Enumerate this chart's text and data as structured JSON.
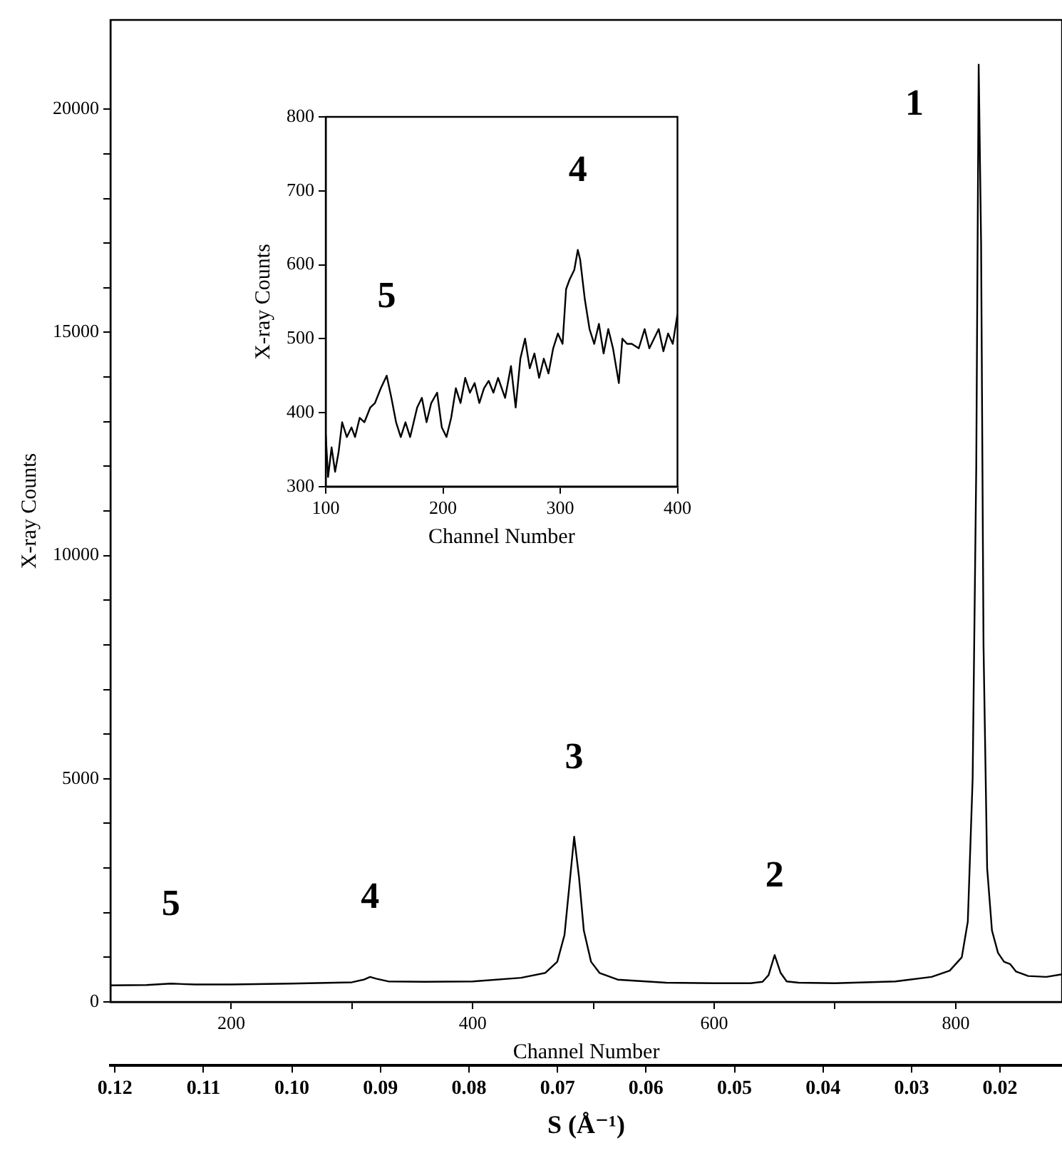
{
  "chart_data": [
    {
      "type": "line",
      "xlabel": "Channel Number",
      "ylabel": "X-ray Counts",
      "x2label": "S (Å⁻¹)",
      "color": "#000000",
      "marker": "none",
      "grid": false,
      "x": [
        100,
        130,
        150,
        170,
        200,
        250,
        300,
        310,
        315,
        320,
        330,
        360,
        400,
        440,
        460,
        470,
        476,
        480,
        484,
        488,
        492,
        498,
        505,
        520,
        560,
        600,
        630,
        640,
        645,
        650,
        655,
        660,
        670,
        700,
        750,
        780,
        795,
        805,
        810,
        814,
        817,
        819,
        821,
        823,
        826,
        830,
        835,
        840,
        845,
        850,
        860,
        875,
        888
      ],
      "values": [
        370,
        380,
        410,
        390,
        390,
        410,
        440,
        500,
        560,
        520,
        460,
        450,
        460,
        540,
        650,
        900,
        1500,
        2600,
        3700,
        2800,
        1600,
        900,
        650,
        500,
        430,
        420,
        420,
        450,
        600,
        1050,
        650,
        460,
        430,
        420,
        460,
        560,
        700,
        1000,
        1800,
        5000,
        12000,
        21000,
        17000,
        8000,
        3000,
        1600,
        1100,
        900,
        850,
        680,
        580,
        560,
        620
      ],
      "xlim": [
        100,
        888
      ],
      "xticks": [
        200,
        {
          "value": 300,
          "label": null
        },
        400,
        {
          "value": 500,
          "label": null
        },
        600,
        {
          "value": 700,
          "label": null
        },
        800
      ],
      "ylim": [
        0,
        22000
      ],
      "yticks": [
        0,
        {
          "value": 1000,
          "label": null
        },
        {
          "value": 2000,
          "label": null
        },
        {
          "value": 3000,
          "label": null
        },
        {
          "value": 4000,
          "label": null
        },
        5000,
        {
          "value": 6000,
          "label": null
        },
        {
          "value": 7000,
          "label": null
        },
        {
          "value": 8000,
          "label": null
        },
        {
          "value": 9000,
          "label": null
        },
        10000,
        {
          "value": 11000,
          "label": null
        },
        {
          "value": 12000,
          "label": null
        },
        {
          "value": 13000,
          "label": null
        },
        {
          "value": 14000,
          "label": null
        },
        15000,
        {
          "value": 16000,
          "label": null
        },
        {
          "value": 17000,
          "label": null
        },
        {
          "value": 18000,
          "label": null
        },
        {
          "value": 19000,
          "label": null
        },
        20000
      ],
      "x2lim": [
        0.1205,
        0.013
      ],
      "x2ticks": [
        0.12,
        0.11,
        {
          "value": 0.1,
          "label": "0.10"
        },
        0.09,
        0.08,
        0.07,
        0.06,
        0.05,
        0.04,
        0.03,
        0.02
      ],
      "annotations": [
        {
          "text": "1",
          "x": 819,
          "y": 21000
        },
        {
          "text": "2",
          "x": 650,
          "y": 1050
        },
        {
          "text": "3",
          "x": 484,
          "y": 3700
        },
        {
          "text": "4",
          "x": 315,
          "y": 560
        },
        {
          "text": "5",
          "x": 150,
          "y": 410
        }
      ]
    },
    {
      "type": "line",
      "xlabel": "Channel Number",
      "ylabel": "X-ray Counts",
      "color": "#000000",
      "marker": "none",
      "grid": false,
      "x": [
        100,
        102,
        105,
        108,
        111,
        114,
        118,
        122,
        125,
        129,
        133,
        138,
        142,
        147,
        152,
        156,
        160,
        164,
        168,
        172,
        178,
        182,
        186,
        190,
        195,
        199,
        203,
        207,
        211,
        215,
        219,
        223,
        227,
        231,
        235,
        239,
        243,
        247,
        253,
        258,
        262,
        266,
        270,
        274,
        278,
        282,
        286,
        290,
        294,
        298,
        302,
        305,
        308,
        312,
        315,
        317,
        321,
        325,
        329,
        333,
        337,
        341,
        345,
        350,
        353,
        357,
        361,
        367,
        372,
        376,
        380,
        384,
        388,
        392,
        396,
        400
      ],
      "values": [
        370,
        313,
        353,
        320,
        347,
        387,
        367,
        380,
        367,
        393,
        387,
        407,
        413,
        433,
        450,
        420,
        387,
        367,
        387,
        367,
        407,
        420,
        387,
        413,
        427,
        380,
        367,
        393,
        433,
        413,
        447,
        427,
        440,
        413,
        433,
        443,
        427,
        447,
        420,
        463,
        407,
        473,
        500,
        460,
        480,
        447,
        473,
        453,
        487,
        507,
        493,
        567,
        580,
        593,
        620,
        607,
        553,
        513,
        493,
        520,
        480,
        513,
        487,
        440,
        500,
        493,
        493,
        487,
        513,
        487,
        500,
        513,
        483,
        507,
        493,
        533
      ],
      "xlim": [
        100,
        400
      ],
      "xticks": [
        100,
        200,
        300,
        400
      ],
      "ylim": [
        300,
        800
      ],
      "yticks": [
        300,
        400,
        500,
        600,
        700,
        800
      ],
      "annotations": [
        {
          "text": "4",
          "x": 315,
          "y": 620
        },
        {
          "text": "5",
          "x": 152,
          "y": 450
        }
      ]
    }
  ]
}
